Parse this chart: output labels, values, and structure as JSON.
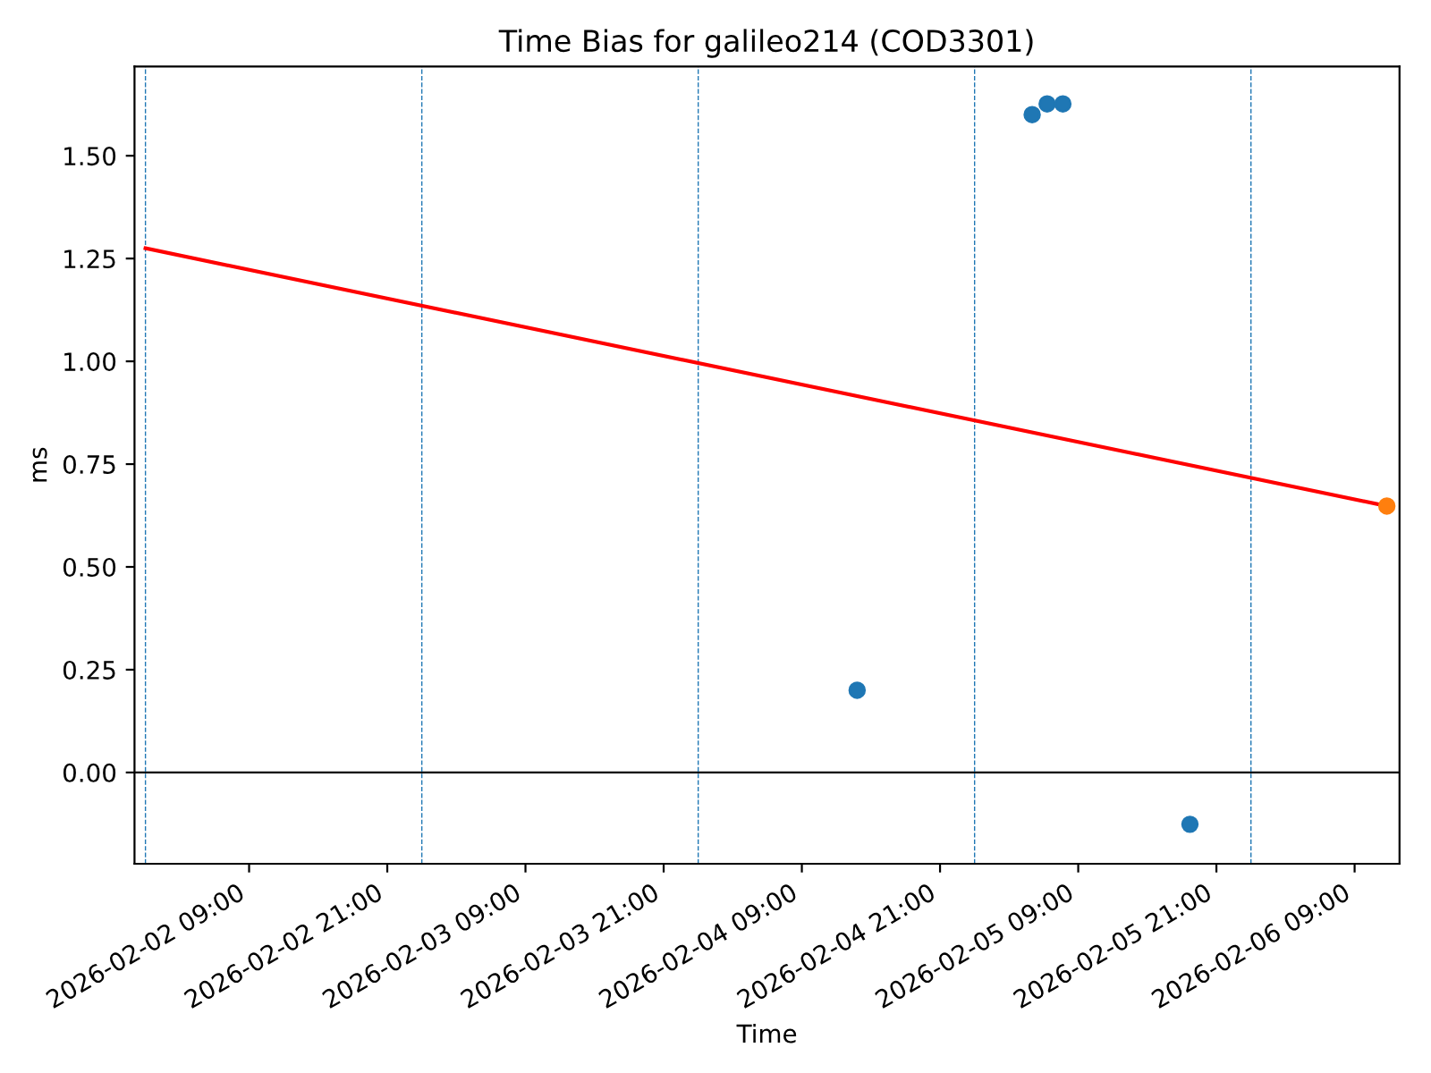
{
  "chart_data": {
    "type": "scatter",
    "title": "Time Bias for galileo214 (COD3301)",
    "xlabel": "Time",
    "ylabel": "ms",
    "xlim": [
      "2026-02-01T23:03",
      "2026-02-06T12:54"
    ],
    "ylim": [
      -0.222,
      1.717
    ],
    "xticks": [
      {
        "value": "2026-02-02T09:00",
        "label": "2026-02-02 09:00"
      },
      {
        "value": "2026-02-02T21:00",
        "label": "2026-02-02 21:00"
      },
      {
        "value": "2026-02-03T09:00",
        "label": "2026-02-03 09:00"
      },
      {
        "value": "2026-02-03T21:00",
        "label": "2026-02-03 21:00"
      },
      {
        "value": "2026-02-04T09:00",
        "label": "2026-02-04 09:00"
      },
      {
        "value": "2026-02-04T21:00",
        "label": "2026-02-04 21:00"
      },
      {
        "value": "2026-02-05T09:00",
        "label": "2026-02-05 09:00"
      },
      {
        "value": "2026-02-05T21:00",
        "label": "2026-02-05 21:00"
      },
      {
        "value": "2026-02-06T09:00",
        "label": "2026-02-06 09:00"
      }
    ],
    "yticks": [
      {
        "value": 0,
        "label": "0.00"
      },
      {
        "value": 0.25,
        "label": "0.25"
      },
      {
        "value": 0.5,
        "label": "0.50"
      },
      {
        "value": 0.75,
        "label": "0.75"
      },
      {
        "value": 1,
        "label": "1.00"
      },
      {
        "value": 1.25,
        "label": "1.25"
      },
      {
        "value": 1.5,
        "label": "1.50"
      }
    ],
    "marker": "circle",
    "grid": false,
    "series": [
      {
        "type": "line",
        "marker": "none",
        "color": "#ff0000",
        "x": [
          "2026-02-02T00:00",
          "2026-02-06T11:48"
        ],
        "values": [
          1.275,
          0.648
        ]
      },
      {
        "color": "#1f77b4",
        "x": [
          "2026-02-04T13:48",
          "2026-02-05T05:00",
          "2026-02-05T06:18",
          "2026-02-05T07:40",
          "2026-02-05T18:42"
        ],
        "values": [
          0.2,
          1.6,
          1.626,
          1.626,
          -0.126
        ]
      },
      {
        "color": "#ff7f0e",
        "x": [
          "2026-02-06T11:48"
        ],
        "values": [
          0.648
        ]
      }
    ],
    "ref_lines": [
      {
        "axis": "y",
        "value": 0,
        "color": "#000000",
        "line_style": "solid"
      },
      {
        "axis": "x",
        "value": "2026-02-02T00:00",
        "color": "#1f77b4",
        "line_style": "dashed"
      },
      {
        "axis": "x",
        "value": "2026-02-03T00:00",
        "color": "#1f77b4",
        "line_style": "dashed"
      },
      {
        "axis": "x",
        "value": "2026-02-04T00:00",
        "color": "#1f77b4",
        "line_style": "dashed"
      },
      {
        "axis": "x",
        "value": "2026-02-05T00:00",
        "color": "#1f77b4",
        "line_style": "dashed"
      },
      {
        "axis": "x",
        "value": "2026-02-06T00:00",
        "color": "#1f77b4",
        "line_style": "dashed"
      }
    ]
  }
}
